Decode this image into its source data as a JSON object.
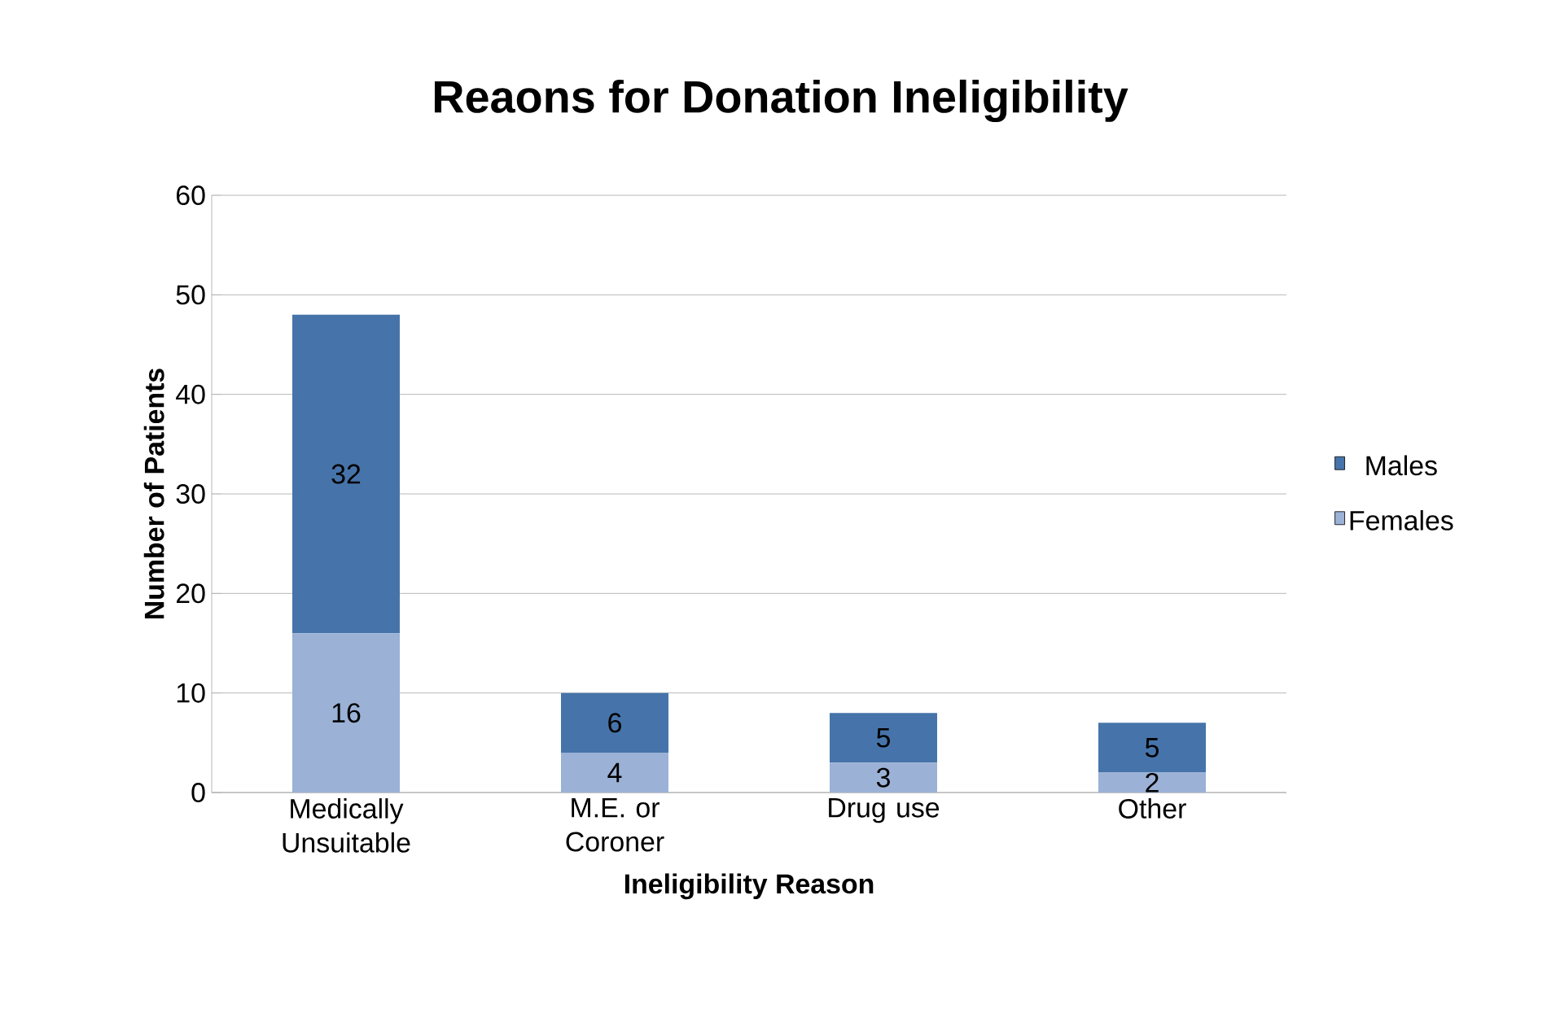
{
  "chart_data": {
    "type": "bar",
    "title": "Reaons for Donation Ineligibility",
    "xlabel": "Ineligibility Reason",
    "ylabel": "Number of Patients",
    "categories": [
      "Medically Unsuitable",
      "M.E. or Coroner",
      "Drug use",
      "Other"
    ],
    "series": [
      {
        "name": "Females",
        "color": "#9bb1d6",
        "values": [
          16,
          4,
          3,
          2
        ]
      },
      {
        "name": "Males",
        "color": "#4674aa",
        "values": [
          32,
          6,
          5,
          5
        ]
      }
    ],
    "stacked": true,
    "ylim": [
      0,
      60
    ],
    "yticks": [
      0,
      10,
      20,
      30,
      40,
      50,
      60
    ],
    "grid": "y",
    "legend": "right",
    "data_labels": true
  }
}
